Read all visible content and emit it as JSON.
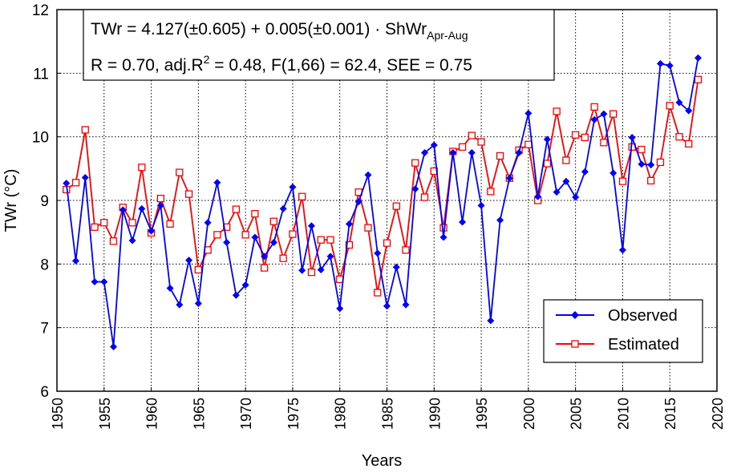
{
  "chart_data": {
    "type": "line",
    "xlabel": "Years",
    "ylabel": "TWr (°C)",
    "xlim": [
      1950,
      2020
    ],
    "ylim": [
      6,
      12
    ],
    "xticks": [
      1950,
      1955,
      1960,
      1965,
      1970,
      1975,
      1980,
      1985,
      1990,
      1995,
      2000,
      2005,
      2010,
      2015,
      2020
    ],
    "yticks": [
      6,
      7,
      8,
      9,
      10,
      11,
      12
    ],
    "grid": true,
    "legend_position": "bottom-right",
    "annotation": {
      "line1_main": "TWr = 4.127(±0.605) + 0.005(±0.001) · ShWr",
      "line1_sub": "Apr-Aug",
      "line2_a": "R = 0.70, adj.R",
      "line2_sup": "2",
      "line2_b": " = 0.48, F(1,66) = 62.4, SEE = 0.75"
    },
    "x": [
      1951,
      1952,
      1953,
      1954,
      1955,
      1956,
      1957,
      1958,
      1959,
      1960,
      1961,
      1962,
      1963,
      1964,
      1965,
      1966,
      1967,
      1968,
      1969,
      1970,
      1971,
      1972,
      1973,
      1974,
      1975,
      1976,
      1977,
      1978,
      1979,
      1980,
      1981,
      1982,
      1983,
      1984,
      1985,
      1986,
      1987,
      1988,
      1989,
      1990,
      1991,
      1992,
      1993,
      1994,
      1995,
      1996,
      1997,
      1998,
      1999,
      2000,
      2001,
      2002,
      2003,
      2004,
      2005,
      2006,
      2007,
      2008,
      2009,
      2010,
      2011,
      2012,
      2013,
      2014,
      2015,
      2016,
      2017,
      2018
    ],
    "series": [
      {
        "name": "Observed",
        "color": "#0000ff",
        "marker": "diamond",
        "values": [
          9.27,
          8.05,
          9.36,
          7.72,
          7.72,
          6.7,
          8.85,
          8.37,
          8.87,
          8.52,
          8.92,
          7.62,
          7.36,
          8.06,
          7.38,
          8.65,
          9.28,
          8.34,
          7.51,
          7.67,
          8.42,
          8.12,
          8.34,
          8.87,
          9.21,
          7.9,
          8.6,
          7.91,
          8.12,
          7.3,
          8.63,
          8.98,
          9.4,
          8.17,
          7.34,
          7.95,
          7.36,
          9.18,
          9.75,
          9.87,
          8.42,
          9.75,
          8.66,
          9.75,
          8.92,
          7.11,
          8.69,
          9.35,
          9.75,
          10.37,
          9.06,
          9.96,
          9.13,
          9.3,
          9.05,
          9.45,
          10.27,
          10.36,
          9.43,
          8.22,
          9.99,
          9.57,
          9.56,
          11.15,
          11.12,
          10.54,
          10.41,
          11.24
        ]
      },
      {
        "name": "Estimated",
        "color": "#ff0000",
        "marker": "square-open",
        "values": [
          9.17,
          9.28,
          10.11,
          8.58,
          8.65,
          8.36,
          8.89,
          8.65,
          9.52,
          8.49,
          9.03,
          8.63,
          9.44,
          9.1,
          7.91,
          8.22,
          8.46,
          8.58,
          8.86,
          8.46,
          8.79,
          7.94,
          8.67,
          8.09,
          8.47,
          9.06,
          7.87,
          8.38,
          8.38,
          7.76,
          8.3,
          9.13,
          8.57,
          7.55,
          8.33,
          8.91,
          8.22,
          9.59,
          9.05,
          9.46,
          8.57,
          9.77,
          9.84,
          10.02,
          9.92,
          9.14,
          9.7,
          9.35,
          9.79,
          9.88,
          9.0,
          9.58,
          10.4,
          9.63,
          10.03,
          9.99,
          10.47,
          9.91,
          10.36,
          9.3,
          9.84,
          9.8,
          9.31,
          9.6,
          10.49,
          10.0,
          9.89,
          10.9
        ]
      }
    ]
  }
}
